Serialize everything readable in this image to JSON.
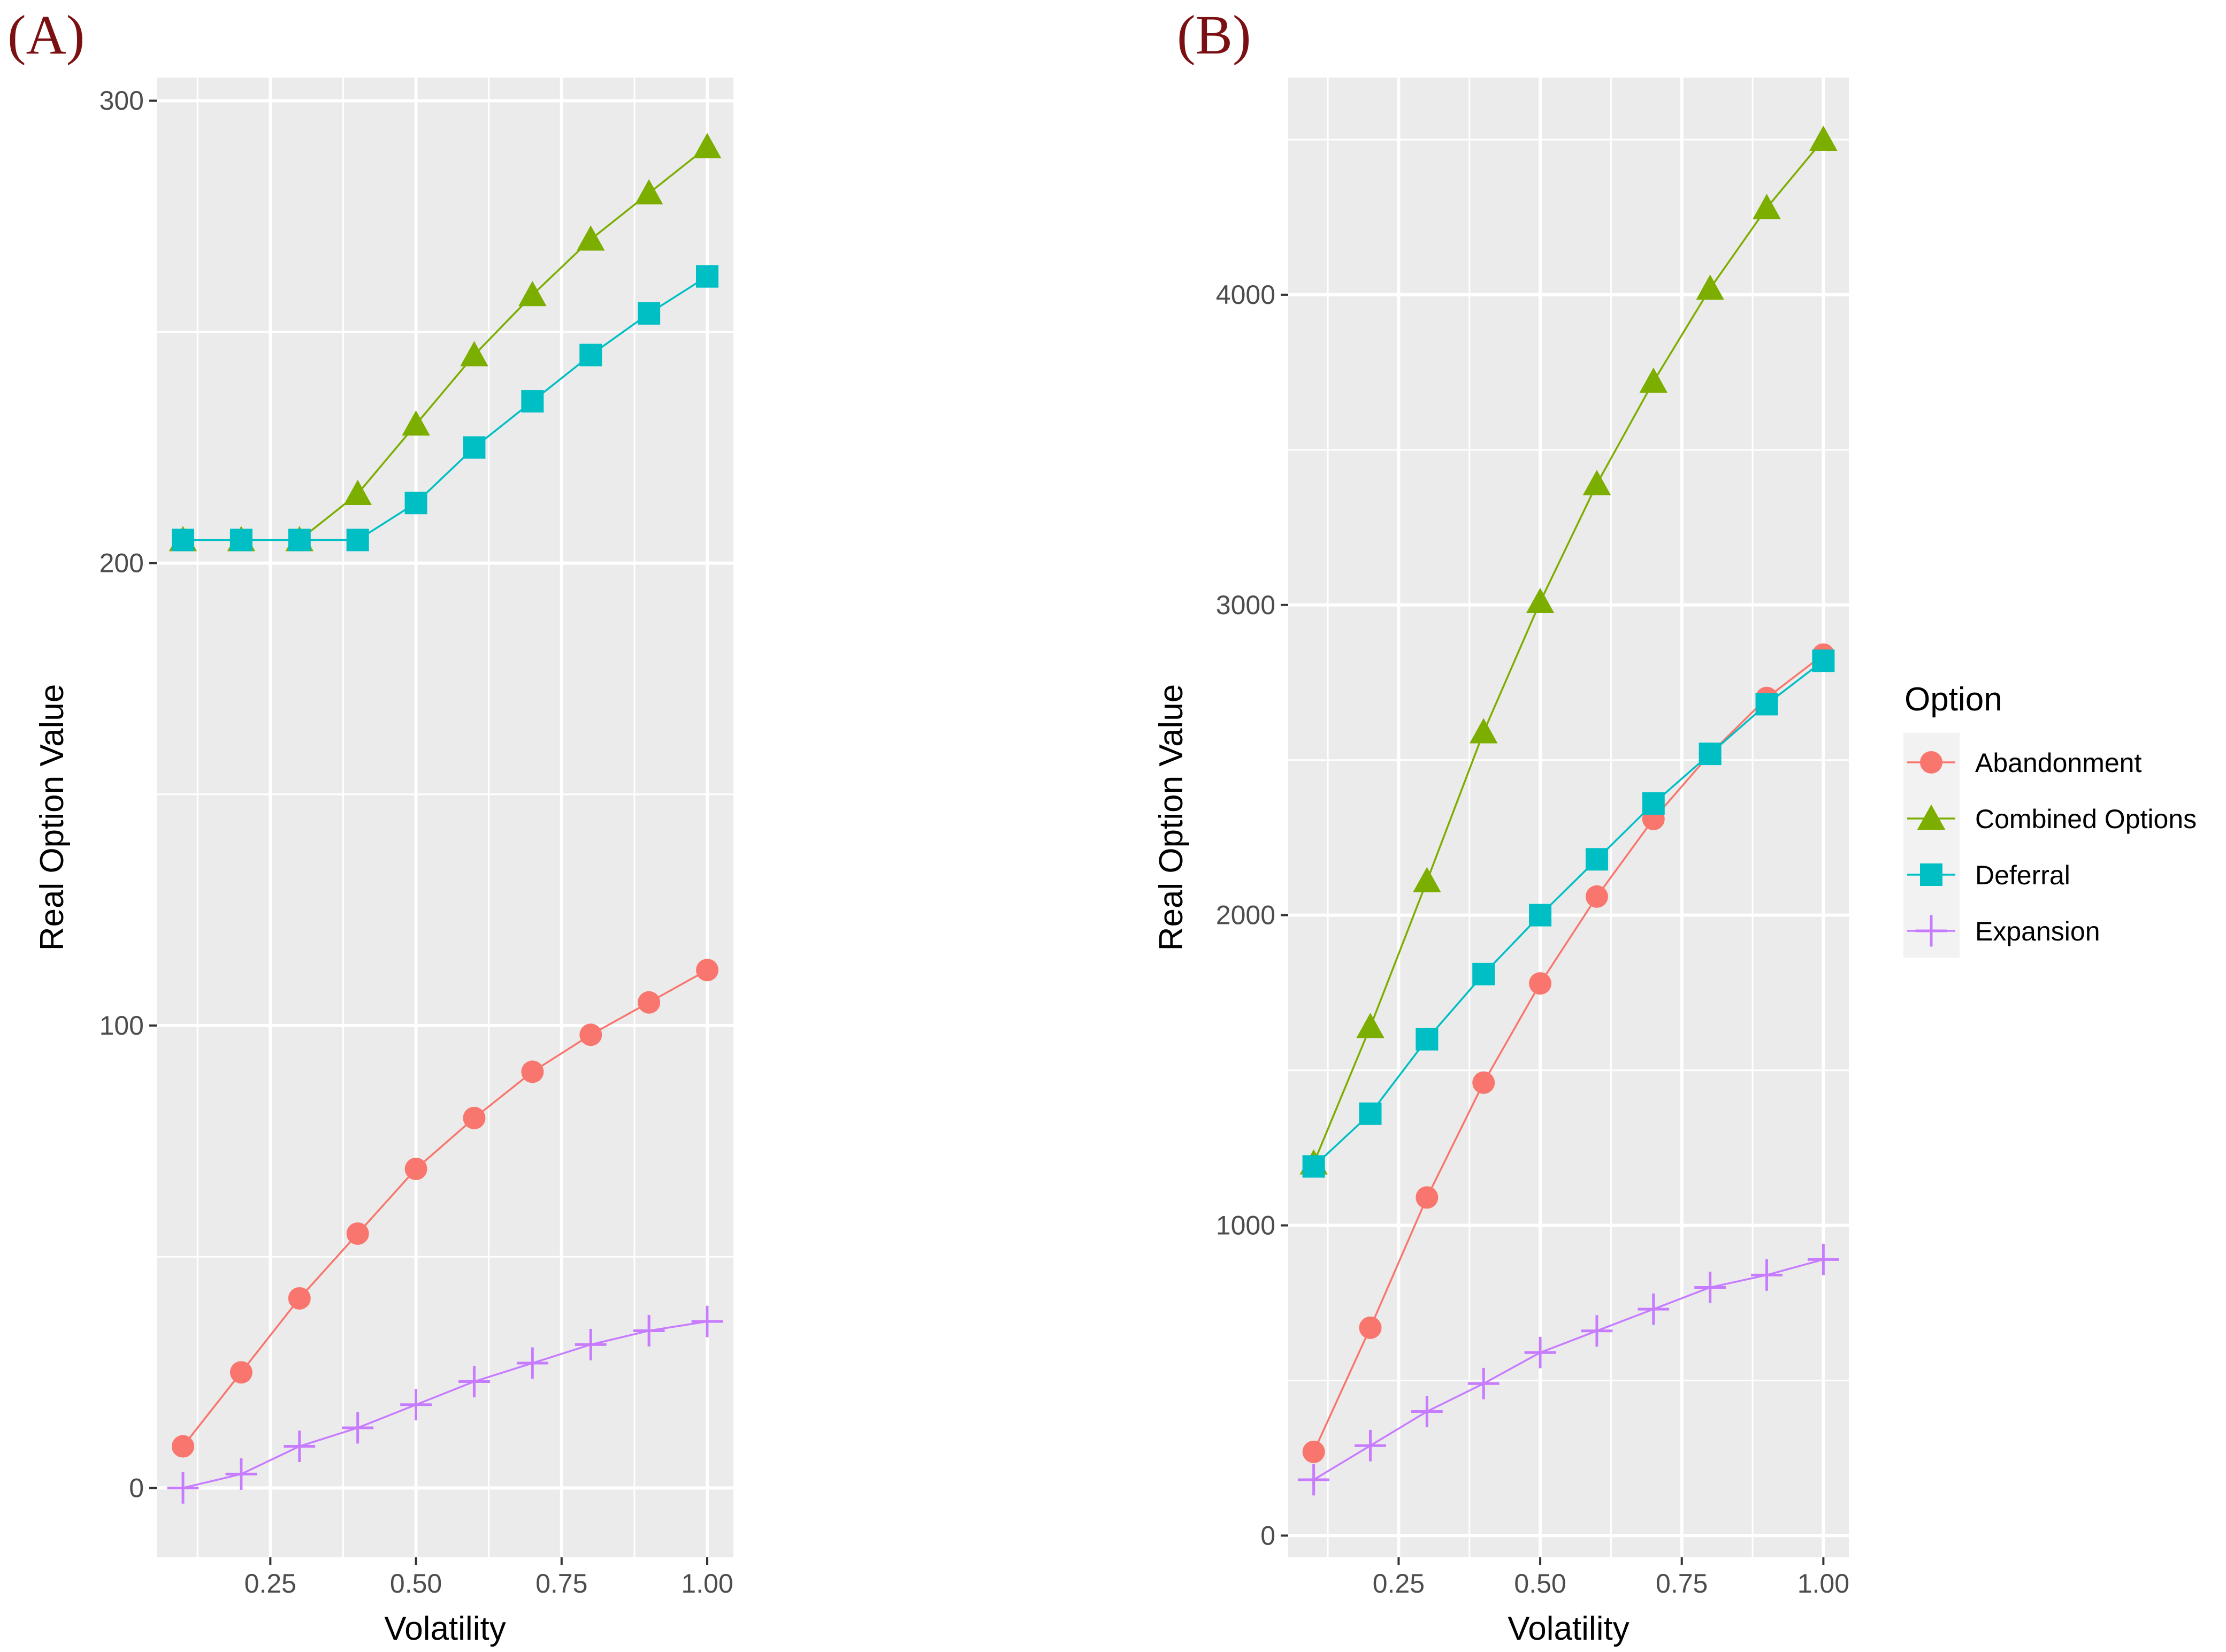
{
  "chart_data": [
    {
      "type": "line",
      "panel_label": "(A)",
      "xlabel": "Volatility",
      "ylabel": "Real Option Value",
      "xlim": [
        0.055,
        1.045
      ],
      "ylim": [
        -15,
        305
      ],
      "x_ticks": [
        0.25,
        0.5,
        0.75,
        1.0
      ],
      "x_tick_labels": [
        "0.25",
        "0.50",
        "0.75",
        "1.00"
      ],
      "y_ticks": [
        0,
        100,
        200,
        300
      ],
      "y_tick_labels": [
        "0",
        "100",
        "200",
        "300"
      ],
      "grid": true,
      "x": [
        0.1,
        0.2,
        0.3,
        0.4,
        0.5,
        0.6,
        0.7,
        0.8,
        0.9,
        1.0
      ],
      "series": [
        {
          "name": "Abandonment",
          "values": [
            9,
            25,
            41,
            55,
            69,
            80,
            90,
            98,
            105,
            112
          ]
        },
        {
          "name": "Combined Options",
          "values": [
            205,
            205,
            205,
            215,
            230,
            245,
            258,
            270,
            280,
            290
          ]
        },
        {
          "name": "Deferral",
          "values": [
            205,
            205,
            205,
            205,
            213,
            225,
            235,
            245,
            254,
            262
          ]
        },
        {
          "name": "Expansion",
          "values": [
            0,
            3,
            9,
            13,
            18,
            23,
            27,
            31,
            34,
            36
          ]
        }
      ]
    },
    {
      "type": "line",
      "panel_label": "(B)",
      "xlabel": "Volatility",
      "ylabel": "Real Option Value",
      "xlim": [
        0.055,
        1.045
      ],
      "ylim": [
        -70,
        4700
      ],
      "x_ticks": [
        0.25,
        0.5,
        0.75,
        1.0
      ],
      "x_tick_labels": [
        "0.25",
        "0.50",
        "0.75",
        "1.00"
      ],
      "y_ticks": [
        0,
        1000,
        2000,
        3000,
        4000
      ],
      "y_tick_labels": [
        "0",
        "1000",
        "2000",
        "3000",
        "4000"
      ],
      "grid": true,
      "x": [
        0.1,
        0.2,
        0.3,
        0.4,
        0.5,
        0.6,
        0.7,
        0.8,
        0.9,
        1.0
      ],
      "series": [
        {
          "name": "Abandonment",
          "values": [
            270,
            670,
            1090,
            1460,
            1780,
            2060,
            2310,
            2520,
            2700,
            2840
          ]
        },
        {
          "name": "Combined Options",
          "values": [
            1200,
            1640,
            2110,
            2590,
            3010,
            3390,
            3720,
            4020,
            4280,
            4500
          ]
        },
        {
          "name": "Deferral",
          "values": [
            1190,
            1360,
            1600,
            1810,
            2000,
            2180,
            2360,
            2520,
            2680,
            2820
          ]
        },
        {
          "name": "Expansion",
          "values": [
            180,
            290,
            400,
            490,
            590,
            660,
            730,
            800,
            840,
            890
          ]
        }
      ]
    }
  ],
  "legend": {
    "title": "Option",
    "position": "right",
    "items": [
      {
        "name": "Abandonment",
        "shape": "circle"
      },
      {
        "name": "Combined Options",
        "shape": "triangle"
      },
      {
        "name": "Deferral",
        "shape": "square"
      },
      {
        "name": "Expansion",
        "shape": "cross"
      }
    ]
  },
  "colors": {
    "Abandonment": "#F8766D",
    "Combined Options": "#7CAE00",
    "Deferral": "#00BFC4",
    "Expansion": "#C77CFF",
    "panel_background": "#EBEBEB",
    "grid_line": "#FFFFFF",
    "panel_label": "#7A1012"
  }
}
